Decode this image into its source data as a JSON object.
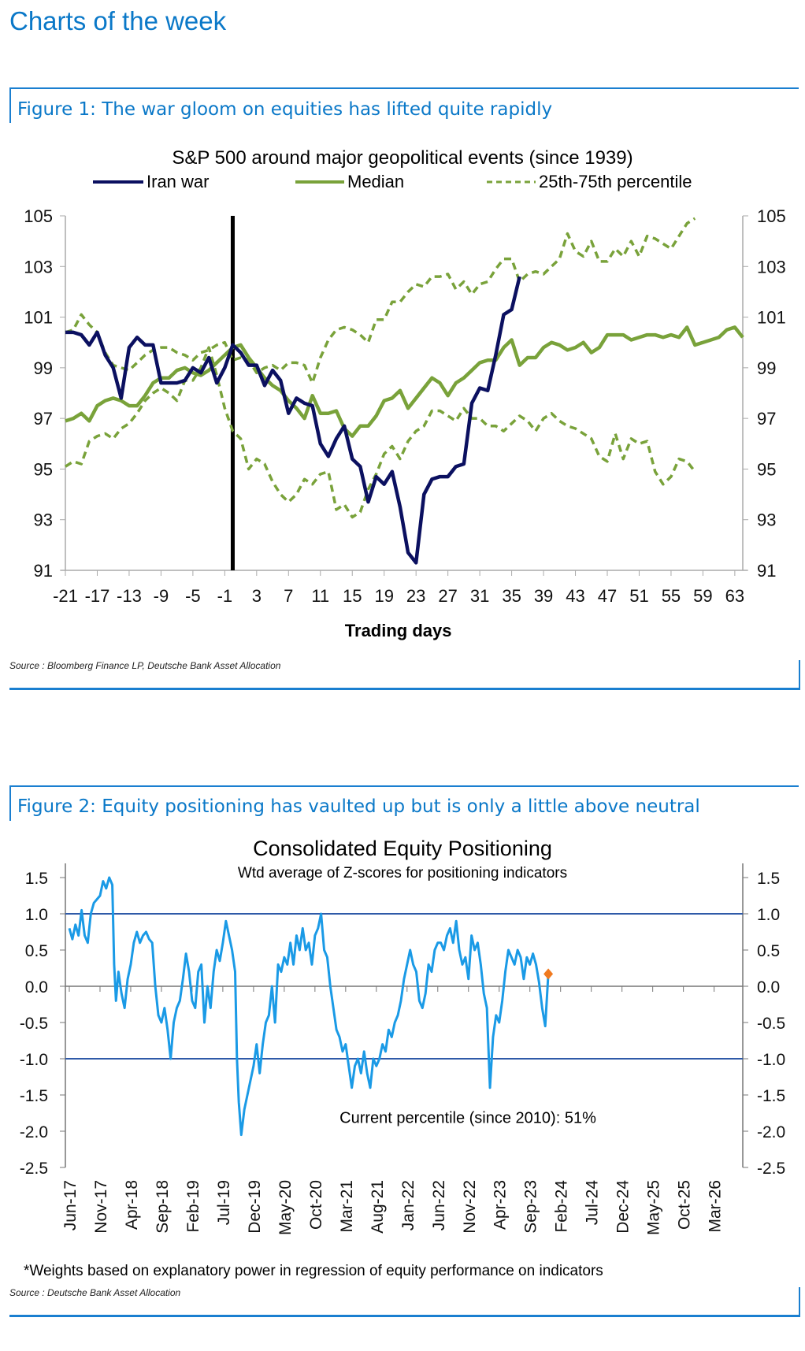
{
  "page": {
    "title": "Charts of the week"
  },
  "figure1": {
    "caption": "Figure 1: The war gloom on equities has lifted quite rapidly",
    "source": "Source : Bloomberg Finance LP, Deutsche Bank Asset Allocation"
  },
  "figure2": {
    "caption": "Figure 2: Equity positioning has vaulted up but is only a little above neutral",
    "source": "Source : Deutsche Bank Asset Allocation",
    "footnote": "*Weights based on explanatory power in regression of equity performance on indicators"
  },
  "colors": {
    "iran_war": "#0b1060",
    "median": "#79a23a",
    "percentile": "#79a23a",
    "positioning": "#1a9ae6",
    "current_marker": "#f07a20",
    "threshold": "#2f5aa8",
    "brand_blue": "#0a78c8"
  },
  "chart_data": [
    {
      "type": "line",
      "title": "S&P 500 around major geopolitical events (since 1939)",
      "xlabel": "Trading days",
      "ylabel": "",
      "xlim": [
        -21,
        64
      ],
      "ylim": [
        91,
        105
      ],
      "yticks": [
        91,
        93,
        95,
        97,
        99,
        101,
        103,
        105
      ],
      "xticks": [
        -21,
        -17,
        -13,
        -9,
        -5,
        -1,
        3,
        7,
        11,
        15,
        19,
        23,
        27,
        31,
        35,
        39,
        43,
        47,
        51,
        55,
        59,
        63
      ],
      "event_marker_x": 0,
      "legend_position": "top",
      "series": [
        {
          "name": "Iran war",
          "style": "solid",
          "x_start": -21,
          "values": [
            100.4,
            100.4,
            100.3,
            99.9,
            100.4,
            99.5,
            99.0,
            97.8,
            99.8,
            100.2,
            99.9,
            99.9,
            98.4,
            98.4,
            98.4,
            98.5,
            99.0,
            98.8,
            99.4,
            98.4,
            99.0,
            99.9,
            99.6,
            99.1,
            99.1,
            98.3,
            98.9,
            98.5,
            97.2,
            97.8,
            97.6,
            97.5,
            96.0,
            95.5,
            96.2,
            96.7,
            95.4,
            95.1,
            93.7,
            94.7,
            94.4,
            94.9,
            93.5,
            91.7,
            91.3,
            94.0,
            94.6,
            94.7,
            94.7,
            95.1,
            95.2,
            97.6,
            98.2,
            98.1,
            99.5,
            101.1,
            101.3,
            102.6
          ]
        },
        {
          "name": "Median",
          "style": "solid",
          "x_start": -21,
          "values": [
            96.9,
            97.0,
            97.2,
            96.9,
            97.5,
            97.7,
            97.8,
            97.7,
            97.5,
            97.5,
            97.9,
            98.4,
            98.6,
            98.6,
            98.9,
            99.0,
            98.8,
            98.7,
            98.9,
            99.2,
            99.5,
            99.8,
            99.9,
            99.4,
            99.0,
            98.6,
            98.3,
            98.1,
            97.7,
            97.4,
            97.0,
            97.9,
            97.2,
            97.2,
            97.3,
            96.6,
            96.3,
            96.7,
            96.7,
            97.1,
            97.7,
            97.8,
            98.1,
            97.4,
            97.8,
            98.2,
            98.6,
            98.4,
            97.9,
            98.4,
            98.6,
            98.9,
            99.2,
            99.3,
            99.3,
            99.8,
            100.1,
            99.1,
            99.4,
            99.4,
            99.8,
            100.0,
            99.9,
            99.7,
            99.8,
            100.0,
            99.6,
            99.8,
            100.3,
            100.3,
            100.3,
            100.1,
            100.2,
            100.3,
            100.3,
            100.2,
            100.3,
            100.2,
            100.6,
            99.9,
            100.0,
            100.1,
            100.2,
            100.5,
            100.6,
            100.2
          ]
        },
        {
          "name": "25th percentile",
          "style": "dashed",
          "legend": "25th-75th percentile",
          "x_start": -21,
          "values": [
            95.1,
            95.3,
            95.2,
            96.1,
            96.3,
            96.4,
            96.2,
            96.6,
            96.8,
            97.2,
            97.7,
            98.0,
            98.2,
            98.0,
            97.7,
            98.5,
            98.5,
            99.0,
            99.8,
            98.7,
            97.4,
            96.5,
            96.2,
            95.0,
            95.4,
            95.2,
            94.5,
            94.0,
            93.7,
            94.0,
            94.6,
            94.4,
            94.8,
            94.9,
            93.4,
            93.6,
            93.1,
            93.3,
            94.2,
            94.8,
            95.6,
            95.9,
            95.4,
            96.1,
            96.5,
            96.7,
            97.3,
            97.3,
            97.1,
            96.9,
            97.4,
            97.0,
            97.0,
            96.7,
            96.7,
            96.5,
            96.8,
            97.1,
            96.9,
            96.5,
            97.0,
            97.2,
            96.9,
            96.7,
            96.6,
            96.4,
            96.2,
            95.5,
            95.3,
            96.4,
            95.4,
            96.2,
            96.0,
            96.1,
            94.9,
            94.4,
            94.7,
            95.4,
            95.3,
            94.9
          ]
        },
        {
          "name": "75th percentile",
          "style": "dashed",
          "legend": "25th-75th percentile",
          "x_start": -21,
          "values": [
            100.4,
            100.5,
            101.1,
            100.7,
            100.4,
            99.6,
            99.1,
            99.0,
            98.9,
            99.2,
            99.5,
            99.7,
            99.8,
            99.8,
            99.6,
            99.5,
            99.3,
            99.6,
            99.7,
            99.9,
            100.0,
            99.3,
            99.4,
            99.3,
            98.8,
            99.0,
            99.1,
            98.9,
            99.2,
            99.2,
            99.1,
            98.4,
            99.4,
            100.1,
            100.5,
            100.6,
            100.5,
            100.3,
            100.0,
            100.9,
            100.9,
            101.6,
            101.6,
            102.0,
            102.3,
            102.2,
            102.6,
            102.6,
            102.7,
            102.1,
            102.4,
            101.9,
            102.3,
            102.4,
            102.9,
            103.3,
            103.3,
            102.4,
            102.7,
            102.8,
            102.7,
            103.0,
            103.3,
            104.3,
            103.6,
            103.4,
            104.0,
            103.2,
            103.2,
            103.7,
            103.4,
            104.0,
            103.4,
            104.2,
            104.1,
            103.9,
            103.7,
            104.2,
            104.7,
            104.9
          ]
        }
      ]
    },
    {
      "type": "line",
      "title": "Consolidated Equity Positioning",
      "subtitle": "Wtd average of Z-scores for positioning indicators",
      "annotation": "Current percentile (since 2010): 51%",
      "xlabel": "",
      "ylabel": "",
      "ylim": [
        -2.5,
        1.5
      ],
      "yticks": [
        -2.5,
        -2.0,
        -1.5,
        -1.0,
        -0.5,
        0.0,
        0.5,
        1.0,
        1.5
      ],
      "xticks": [
        "Jun-17",
        "Nov-17",
        "Apr-18",
        "Sep-18",
        "Feb-19",
        "Jul-19",
        "Dec-19",
        "May-20",
        "Oct-20",
        "Mar-21",
        "Aug-21",
        "Jan-22",
        "Jun-22",
        "Nov-22",
        "Apr-23",
        "Sep-23",
        "Feb-24",
        "Jul-24",
        "Dec-24",
        "May-25",
        "Oct-25",
        "Mar-26"
      ],
      "x_range_months": [
        0,
        108
      ],
      "reference_lines": [
        1.0,
        -1.0
      ],
      "current_value": 0.17,
      "series": [
        {
          "name": "Consolidated Equity Positioning",
          "points_month_value": [
            [
              0,
              0.8
            ],
            [
              0.5,
              0.65
            ],
            [
              1,
              0.85
            ],
            [
              1.5,
              0.7
            ],
            [
              2,
              1.05
            ],
            [
              2.5,
              0.7
            ],
            [
              3,
              0.6
            ],
            [
              3.5,
              1.0
            ],
            [
              4,
              1.15
            ],
            [
              4.5,
              1.2
            ],
            [
              5,
              1.25
            ],
            [
              5.5,
              1.45
            ],
            [
              6,
              1.35
            ],
            [
              6.5,
              1.5
            ],
            [
              7,
              1.4
            ],
            [
              7.3,
              0.3
            ],
            [
              7.6,
              -0.2
            ],
            [
              8,
              0.2
            ],
            [
              8.5,
              -0.1
            ],
            [
              9,
              -0.3
            ],
            [
              9.5,
              0.1
            ],
            [
              10,
              0.3
            ],
            [
              10.5,
              0.6
            ],
            [
              11,
              0.75
            ],
            [
              11.5,
              0.6
            ],
            [
              12,
              0.7
            ],
            [
              12.5,
              0.75
            ],
            [
              13,
              0.65
            ],
            [
              13.5,
              0.6
            ],
            [
              14,
              0.0
            ],
            [
              14.5,
              -0.4
            ],
            [
              15,
              -0.5
            ],
            [
              15.5,
              -0.3
            ],
            [
              16,
              -0.6
            ],
            [
              16.5,
              -1.0
            ],
            [
              17,
              -0.5
            ],
            [
              17.5,
              -0.3
            ],
            [
              18,
              -0.2
            ],
            [
              18.5,
              0.1
            ],
            [
              19,
              0.45
            ],
            [
              19.5,
              0.2
            ],
            [
              20,
              -0.2
            ],
            [
              20.5,
              -0.3
            ],
            [
              21,
              0.2
            ],
            [
              21.5,
              0.3
            ],
            [
              22,
              -0.5
            ],
            [
              22.5,
              0.0
            ],
            [
              23,
              -0.3
            ],
            [
              23.5,
              0.2
            ],
            [
              24,
              0.5
            ],
            [
              24.5,
              0.35
            ],
            [
              25,
              0.6
            ],
            [
              25.5,
              0.9
            ],
            [
              26,
              0.7
            ],
            [
              26.5,
              0.5
            ],
            [
              27,
              0.2
            ],
            [
              27.3,
              -1.0
            ],
            [
              27.6,
              -1.6
            ],
            [
              28,
              -2.05
            ],
            [
              28.5,
              -1.7
            ],
            [
              29,
              -1.5
            ],
            [
              29.5,
              -1.3
            ],
            [
              30,
              -1.1
            ],
            [
              30.5,
              -0.8
            ],
            [
              31,
              -1.2
            ],
            [
              31.5,
              -0.8
            ],
            [
              32,
              -0.5
            ],
            [
              32.5,
              -0.4
            ],
            [
              33,
              0.0
            ],
            [
              33.5,
              -0.5
            ],
            [
              34,
              0.3
            ],
            [
              34.5,
              0.2
            ],
            [
              35,
              0.4
            ],
            [
              35.5,
              0.3
            ],
            [
              36,
              0.6
            ],
            [
              36.5,
              0.3
            ],
            [
              37,
              0.7
            ],
            [
              37.5,
              0.5
            ],
            [
              38,
              0.8
            ],
            [
              38.5,
              0.5
            ],
            [
              39,
              0.6
            ],
            [
              39.5,
              0.3
            ],
            [
              40,
              0.7
            ],
            [
              40.5,
              0.8
            ],
            [
              41,
              1.0
            ],
            [
              41.5,
              0.5
            ],
            [
              42,
              0.4
            ],
            [
              42.5,
              0.0
            ],
            [
              43,
              -0.3
            ],
            [
              43.5,
              -0.6
            ],
            [
              44,
              -0.7
            ],
            [
              44.5,
              -0.9
            ],
            [
              45,
              -0.8
            ],
            [
              45.5,
              -1.1
            ],
            [
              46,
              -1.4
            ],
            [
              46.5,
              -1.1
            ],
            [
              47,
              -1.0
            ],
            [
              47.5,
              -1.2
            ],
            [
              48,
              -0.9
            ],
            [
              48.5,
              -1.2
            ],
            [
              49,
              -1.4
            ],
            [
              49.5,
              -1.0
            ],
            [
              50,
              -1.1
            ],
            [
              50.5,
              -1.0
            ],
            [
              51,
              -0.8
            ],
            [
              51.5,
              -0.9
            ],
            [
              52,
              -0.6
            ],
            [
              52.5,
              -0.7
            ],
            [
              53,
              -0.5
            ],
            [
              53.5,
              -0.4
            ],
            [
              54,
              -0.2
            ],
            [
              54.5,
              0.1
            ],
            [
              55,
              0.3
            ],
            [
              55.5,
              0.5
            ],
            [
              56,
              0.3
            ],
            [
              56.5,
              0.2
            ],
            [
              57,
              -0.2
            ],
            [
              57.5,
              -0.3
            ],
            [
              58,
              -0.1
            ],
            [
              58.5,
              0.3
            ],
            [
              59,
              0.2
            ],
            [
              59.5,
              0.5
            ],
            [
              60,
              0.6
            ],
            [
              60.5,
              0.6
            ],
            [
              61,
              0.5
            ],
            [
              61.5,
              0.7
            ],
            [
              62,
              0.8
            ],
            [
              62.5,
              0.6
            ],
            [
              63,
              0.9
            ],
            [
              63.5,
              0.5
            ],
            [
              64,
              0.3
            ],
            [
              64.5,
              0.4
            ],
            [
              65,
              0.1
            ],
            [
              65.5,
              0.7
            ],
            [
              66,
              0.5
            ],
            [
              66.5,
              0.6
            ],
            [
              67,
              0.3
            ],
            [
              67.5,
              -0.1
            ],
            [
              68,
              -0.3
            ],
            [
              68.5,
              -1.4
            ],
            [
              69,
              -0.7
            ],
            [
              69.5,
              -0.4
            ],
            [
              70,
              -0.5
            ],
            [
              70.5,
              -0.2
            ],
            [
              71,
              0.2
            ],
            [
              71.5,
              0.5
            ],
            [
              72,
              0.4
            ],
            [
              72.5,
              0.3
            ],
            [
              73,
              0.5
            ],
            [
              73.5,
              0.4
            ],
            [
              74,
              0.1
            ],
            [
              74.5,
              0.4
            ],
            [
              75,
              0.3
            ],
            [
              75.5,
              0.45
            ],
            [
              76,
              0.3
            ],
            [
              76.5,
              0.05
            ],
            [
              77,
              -0.3
            ],
            [
              77.5,
              -0.55
            ],
            [
              78,
              0.17
            ]
          ]
        }
      ]
    }
  ]
}
